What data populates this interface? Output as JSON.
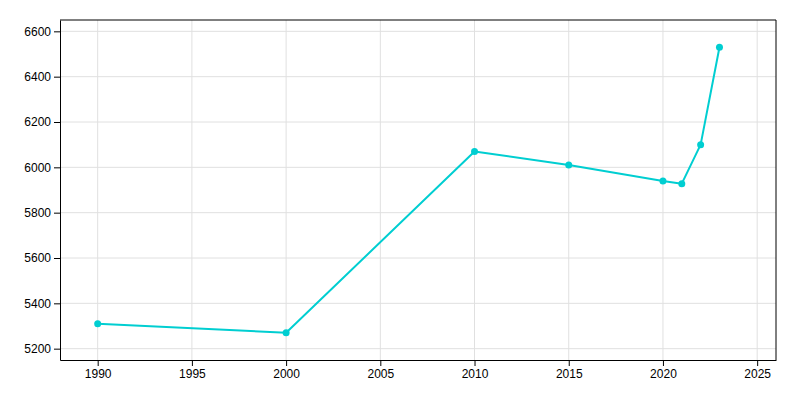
{
  "chart_data": {
    "type": "line",
    "x": [
      1990,
      2000,
      2010,
      2015,
      2020,
      2021,
      2022,
      2023
    ],
    "values": [
      5310,
      5270,
      6070,
      6010,
      5940,
      5928,
      6100,
      6530
    ],
    "color": "#00CED1",
    "marker": "circle",
    "xlim": [
      1988,
      2026
    ],
    "ylim": [
      5150,
      6650
    ],
    "xticks": [
      1990,
      1995,
      2000,
      2005,
      2010,
      2015,
      2020,
      2025
    ],
    "yticks": [
      5200,
      5400,
      5600,
      5800,
      6000,
      6200,
      6400,
      6600
    ],
    "grid": true
  }
}
